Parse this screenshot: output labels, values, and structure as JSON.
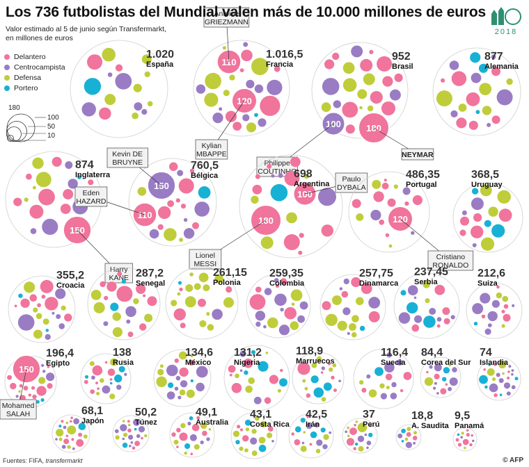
{
  "title": "Los 736 futbolistas del Mundial valen más de 10.000 millones de euros",
  "subtitle_line1": "Valor estimado al 5 de junio según Transfermarkt,",
  "subtitle_line2": "en millones de euros",
  "legend": [
    {
      "label": "Delantero",
      "color": "#f0749c"
    },
    {
      "label": "Centrocampista",
      "color": "#9a7cc4"
    },
    {
      "label": "Defensa",
      "color": "#bfcd3a"
    },
    {
      "label": "Portero",
      "color": "#18b1d6"
    }
  ],
  "size_legend": {
    "labels": [
      "180",
      "100",
      "50",
      "10"
    ]
  },
  "logo_text": "2018",
  "source_label": "Fuentes: FIFA, ",
  "source_italic": "transfermarkt",
  "credit": "© AFP",
  "chart_data": {
    "type": "bubble",
    "unit": "millones de euros",
    "categories": [
      "España",
      "Francia",
      "Brasil",
      "Alemania",
      "Inglaterra",
      "Bélgica",
      "Argentina",
      "Portugal",
      "Uruguay",
      "Croacia",
      "Senegal",
      "Polonia",
      "Colombia",
      "Dinamarca",
      "Serbia",
      "Suiza",
      "Egipto",
      "Rusia",
      "México",
      "Nigeria",
      "Marruecos",
      "Suecia",
      "Corea del Sur",
      "Islandia",
      "Japón",
      "Túnez",
      "Australia",
      "Costa Rica",
      "Irán",
      "Perú",
      "A. Saudita",
      "Panamá"
    ],
    "value_labels": [
      "1.020",
      "1.016,5",
      "952",
      "877",
      "874",
      "760,5",
      "698",
      "486,35",
      "368,5",
      "355,2",
      "287,2",
      "261,15",
      "259,35",
      "257,75",
      "237,45",
      "212,6",
      "196,4",
      "138",
      "134,6",
      "131,2",
      "118,9",
      "116,4",
      "84,4",
      "74",
      "68,1",
      "50,2",
      "49,1",
      "43,1",
      "42,5",
      "37",
      "18,8",
      "9,5"
    ],
    "values": [
      1020,
      1016.5,
      952,
      877,
      874,
      760.5,
      698,
      486.35,
      368.5,
      355.2,
      287.2,
      261.15,
      259.35,
      257.75,
      237.45,
      212.6,
      196.4,
      138,
      134.6,
      131.2,
      118.9,
      116.4,
      84.4,
      74,
      68.1,
      50.2,
      49.1,
      43.1,
      42.5,
      37,
      18.8,
      9.5
    ],
    "highlighted_players": [
      {
        "name": "Antoine GRIEZMANN",
        "value": 110,
        "team": "Francia"
      },
      {
        "name": "Kylian MBAPPE",
        "value": 120,
        "team": "Francia"
      },
      {
        "name": "Philippe COUTINHO",
        "value": 100,
        "team": "Brasil"
      },
      {
        "name": "NEYMAR",
        "value": 180,
        "team": "Brasil"
      },
      {
        "name": "Kevin DE BRUYNE",
        "value": 150,
        "team": "Bélgica"
      },
      {
        "name": "Eden HAZARD",
        "value": 110,
        "team": "Bélgica"
      },
      {
        "name": "Harry KANE",
        "value": 150,
        "team": "Inglaterra"
      },
      {
        "name": "Paulo DYBALA",
        "value": 100,
        "team": "Argentina"
      },
      {
        "name": "Lionel MESSI",
        "value": 180,
        "team": "Argentina"
      },
      {
        "name": "Cristiano RONALDO",
        "value": 120,
        "team": "Portugal"
      },
      {
        "name": "Mohamed SALAH",
        "value": 150,
        "team": "Egipto"
      }
    ]
  }
}
